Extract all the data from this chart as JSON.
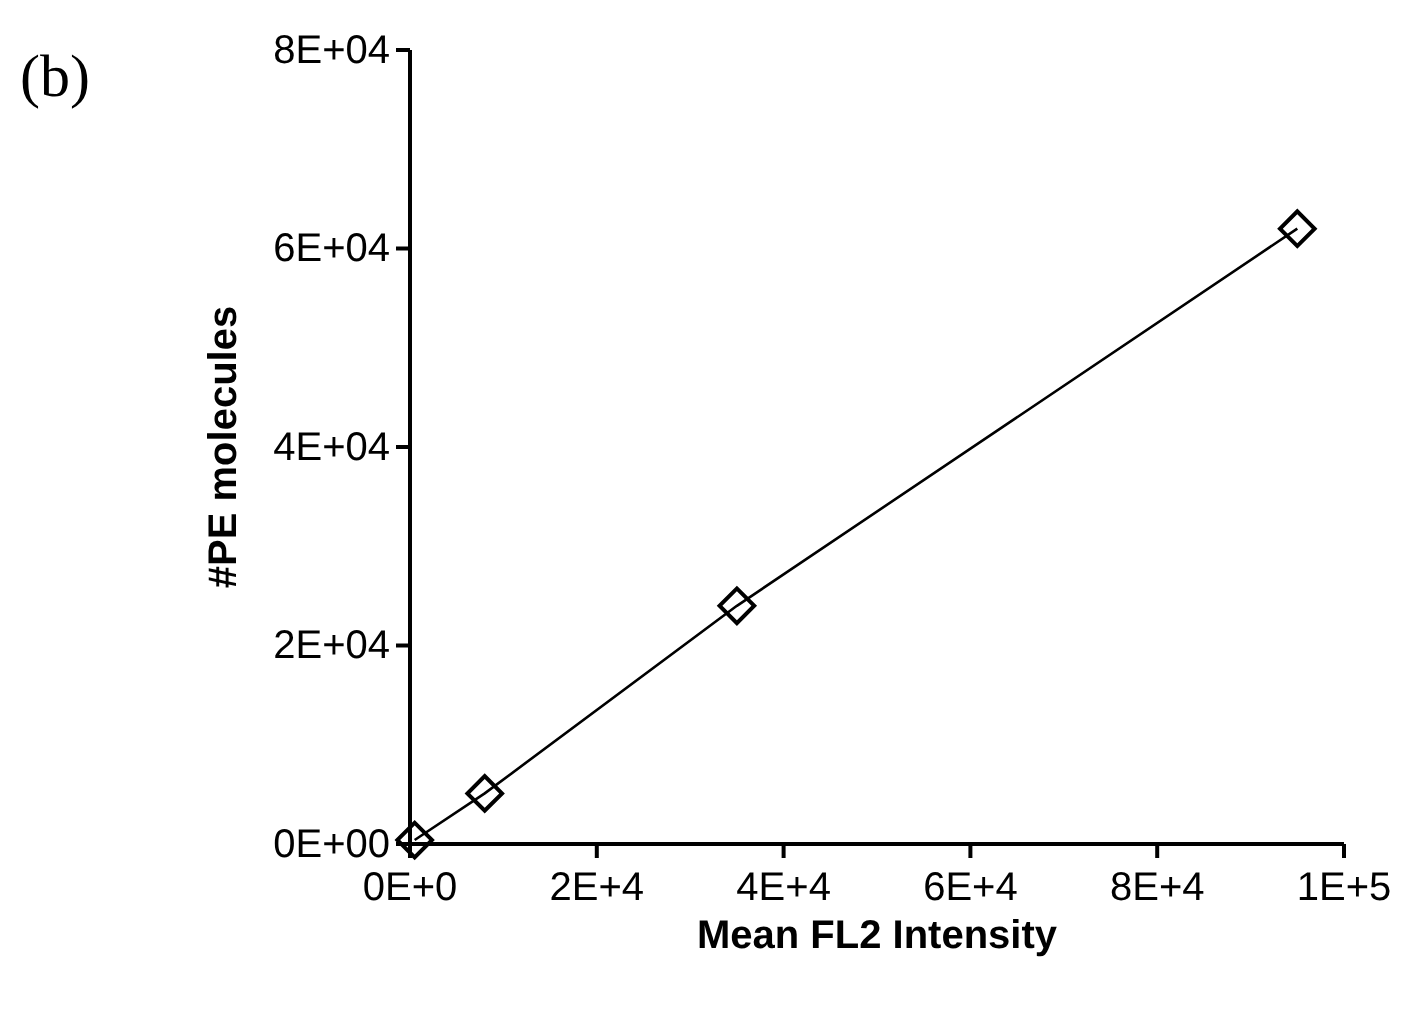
{
  "chart_data": {
    "type": "line",
    "title": "(b)",
    "xlabel": "Mean FL2 Intensity",
    "ylabel": "#PE molecules",
    "x": [
      500,
      8000,
      35000,
      95000
    ],
    "series": [
      {
        "color": "#000000",
        "values": [
          400,
          5100,
          24000,
          62000
        ]
      }
    ],
    "marker": "diamond",
    "line_style": "solid",
    "grid": false,
    "xlim": [
      0,
      100000
    ],
    "xticks": [
      {
        "value": 0,
        "label": "0E+0"
      },
      {
        "value": 20000,
        "label": "2E+4"
      },
      {
        "value": 40000,
        "label": "4E+4"
      },
      {
        "value": 60000,
        "label": "6E+4"
      },
      {
        "value": 80000,
        "label": "8E+4"
      },
      {
        "value": 100000,
        "label": "1E+5"
      }
    ],
    "ylim": [
      0,
      80000
    ],
    "yticks": [
      {
        "value": 0,
        "label": "0E+00"
      },
      {
        "value": 20000,
        "label": "2E+04"
      },
      {
        "value": 40000,
        "label": "4E+04"
      },
      {
        "value": 60000,
        "label": "6E+04"
      },
      {
        "value": 80000,
        "label": "8E+04"
      }
    ]
  }
}
